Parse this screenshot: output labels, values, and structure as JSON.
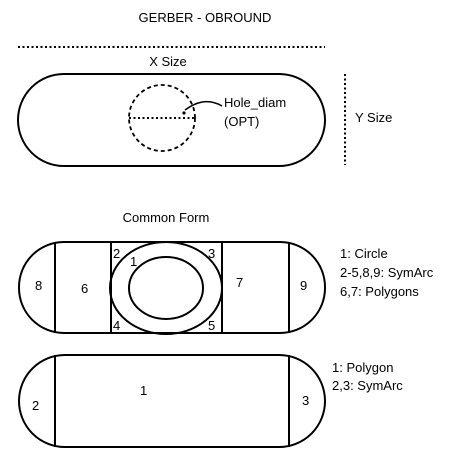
{
  "title": "GERBER - OBROUND",
  "top": {
    "x_size_label": "X Size",
    "y_size_label": "Y Size",
    "hole_label": "Hole_diam",
    "hole_opt_label": "(OPT)"
  },
  "common": {
    "heading": "Common Form",
    "segments": {
      "s1": "1",
      "s2": "2",
      "s3": "3",
      "s4": "4",
      "s5": "5",
      "s6": "6",
      "s7": "7",
      "s8": "8",
      "s9": "9"
    },
    "legend": [
      "1: Circle",
      "2-5,8,9: SymArc",
      "6,7: Polygons"
    ]
  },
  "simple": {
    "segments": {
      "s1": "1",
      "s2": "2",
      "s3": "3"
    },
    "legend": [
      "1: Polygon",
      "2,3: SymArc"
    ]
  }
}
